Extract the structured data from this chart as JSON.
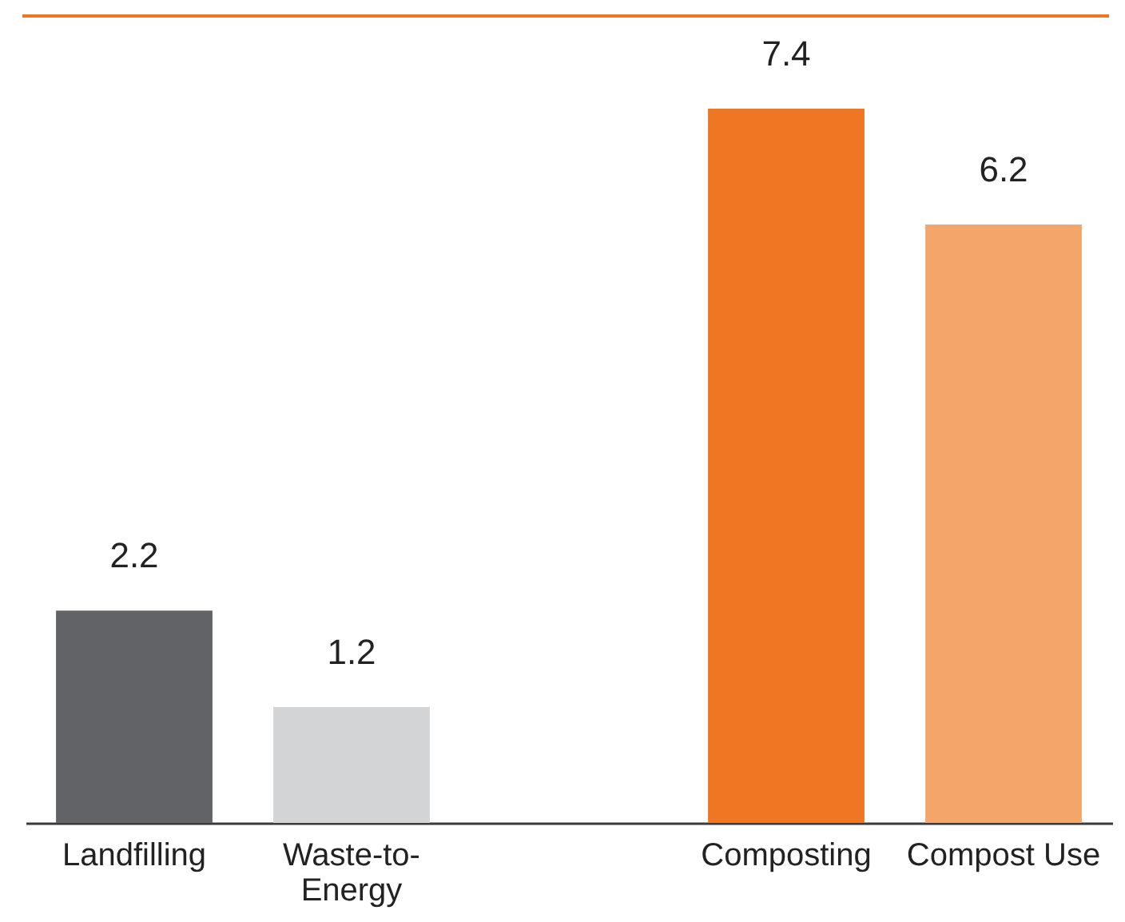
{
  "chart_data": {
    "type": "bar",
    "categories": [
      "Landfilling",
      "Waste-to-Energy",
      null,
      "Composting",
      "Compost Use"
    ],
    "values": [
      2.2,
      1.2,
      null,
      7.4,
      6.2
    ],
    "colors": [
      "#626366",
      "#d3d4d6",
      null,
      "#ef7622",
      "#f4a56a"
    ],
    "data_labels": true,
    "tick_labels": "x"
  }
}
